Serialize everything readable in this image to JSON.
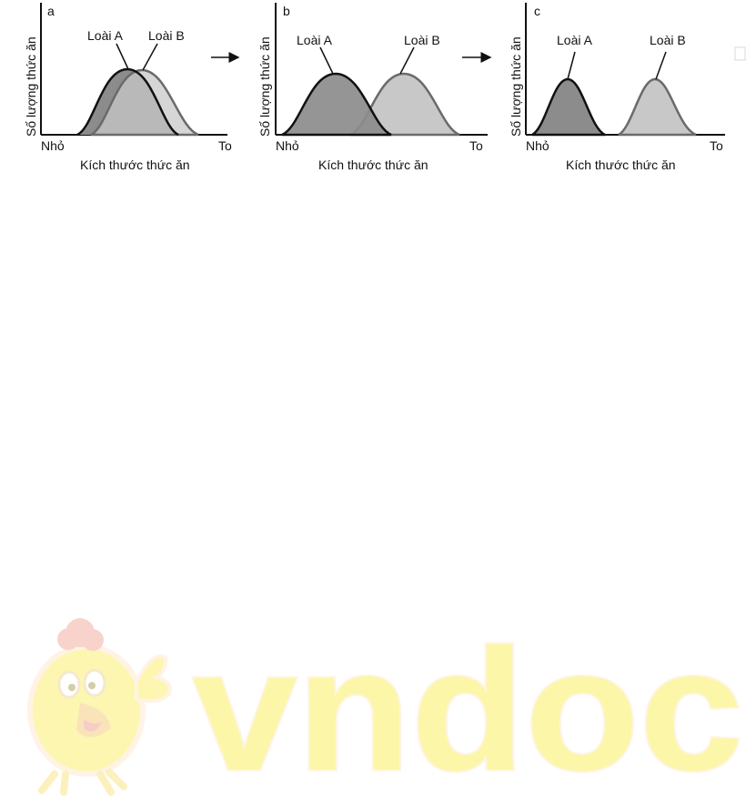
{
  "figure": {
    "panels": [
      {
        "letter": "a",
        "ylabel": "Số lượng thức ăn",
        "xlabel": "Kích thước thức ăn",
        "x_start_label": "Nhỏ",
        "x_end_label": "To",
        "species": [
          {
            "name": "Loài A",
            "fill": "#8c8c8c",
            "stroke": "#111111"
          },
          {
            "name": "Loài B",
            "fill": "#c8c8c8",
            "stroke": "#6a6a6a"
          }
        ]
      },
      {
        "letter": "b",
        "ylabel": "Số lượng thức ăn",
        "xlabel": "Kích thước thức ăn",
        "x_start_label": "Nhỏ",
        "x_end_label": "To",
        "species": [
          {
            "name": "Loài A",
            "fill": "#8c8c8c",
            "stroke": "#111111"
          },
          {
            "name": "Loài B",
            "fill": "#c8c8c8",
            "stroke": "#6a6a6a"
          }
        ]
      },
      {
        "letter": "c",
        "ylabel": "Số lượng thức ăn",
        "xlabel": "Kích thước thức ăn",
        "x_start_label": "Nhỏ",
        "x_end_label": "To",
        "species": [
          {
            "name": "Loài A",
            "fill": "#8c8c8c",
            "stroke": "#111111"
          },
          {
            "name": "Loài B",
            "fill": "#c8c8c8",
            "stroke": "#6a6a6a"
          }
        ]
      }
    ]
  },
  "watermark": {
    "text": "vndoc",
    "color": "#fcf6a8",
    "mascot_icon": "chicken-thumbs-up-icon"
  }
}
